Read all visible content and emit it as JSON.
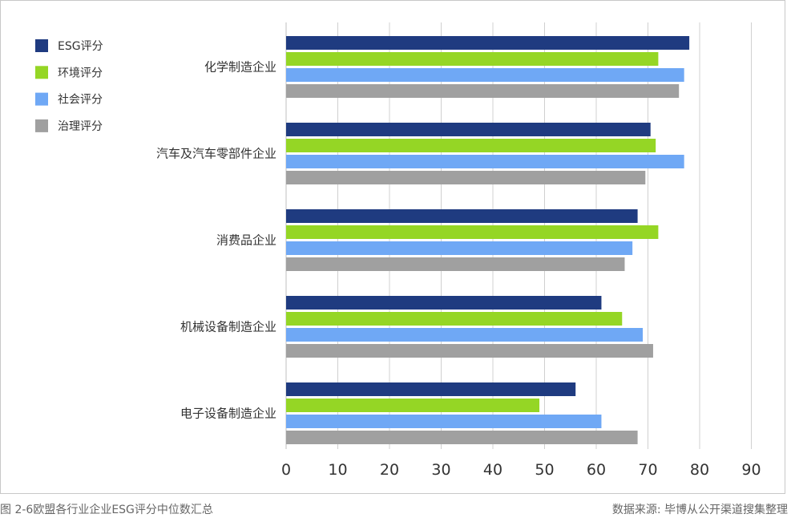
{
  "chart_data": {
    "type": "bar",
    "orientation": "horizontal",
    "categories": [
      "化学制造企业",
      "汽车及汽车零部件企业",
      "消费品企业",
      "机械设备制造企业",
      "电子设备制造企业"
    ],
    "series": [
      {
        "name": "ESG评分",
        "color": "#1f3b80",
        "values": [
          78,
          70.5,
          68,
          61,
          56
        ]
      },
      {
        "name": "环境评分",
        "color": "#95d625",
        "values": [
          72,
          71.5,
          72,
          65,
          49
        ]
      },
      {
        "name": "社会评分",
        "color": "#6fa8f5",
        "values": [
          77,
          77,
          67,
          69,
          61
        ]
      },
      {
        "name": "治理评分",
        "color": "#a0a0a0",
        "values": [
          76,
          69.5,
          65.5,
          71,
          68
        ]
      }
    ],
    "xlim": [
      0,
      90
    ],
    "xticks": [
      0,
      10,
      20,
      30,
      40,
      50,
      60,
      70,
      80,
      90
    ],
    "grid": true,
    "legend_position": "top-left"
  },
  "caption": "图 2-6欧盟各行业企业ESG评分中位数汇总",
  "source": "数据来源: 毕博从公开渠道搜集整理"
}
